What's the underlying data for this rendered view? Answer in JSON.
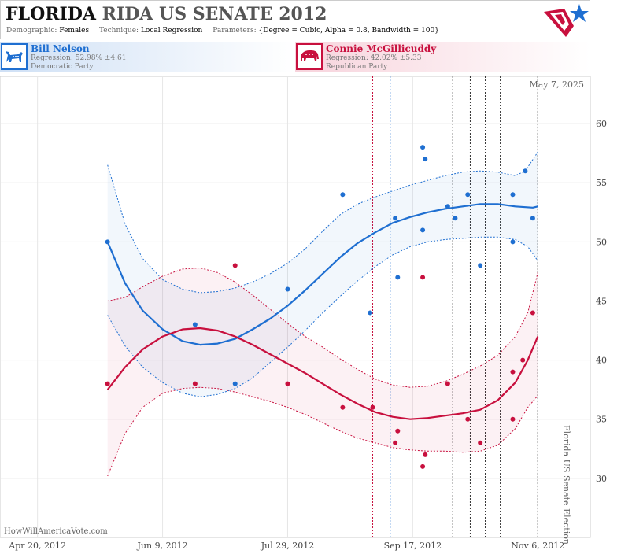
{
  "header": {
    "title_state": "FLORIDA",
    "title_rest": "RIDA US SENATE 2012",
    "params": [
      {
        "key": "Demographic:",
        "value": "Females"
      },
      {
        "key": "Technique:",
        "value": "Local Regression"
      },
      {
        "key": "Parameters:",
        "value": "{Degree = Cubic, Alpha = 0.8, Bandwidth = 100}"
      }
    ]
  },
  "candidates": {
    "dem": {
      "name": "Bill Nelson",
      "regression": "Regression: 52.98% ±4.61",
      "party": "Democratic Party",
      "color": "#1f6fd1"
    },
    "rep": {
      "name": "Connie McGillicuddy",
      "regression": "Regression: 42.02% ±5.33",
      "party": "Republican Party",
      "color": "#c8103e"
    }
  },
  "chart_data": {
    "type": "scatter",
    "title": "FLORIDA RIDA US SENATE 2012",
    "date_label": "May 7, 2025",
    "watermark": "HowWillAmericaVote.com",
    "vertical_label": "Florida US Senate Election",
    "x_ticks": [
      "Apr 20, 2012",
      "Jun 9, 2012",
      "Jul 29, 2012",
      "Sep 17, 2012",
      "Nov 6, 2012"
    ],
    "xlim": [
      "2012-04-05",
      "2012-11-27"
    ],
    "ylim": [
      25,
      64
    ],
    "y_ticks": [
      30,
      35,
      40,
      45,
      50,
      55,
      60
    ],
    "event_lines": [
      {
        "date": "2012-09-01",
        "color": "#c8103e"
      },
      {
        "date": "2012-09-08",
        "color": "#1f6fd1"
      },
      {
        "date": "2012-10-03",
        "color": "#333333"
      },
      {
        "date": "2012-10-10",
        "color": "#333333"
      },
      {
        "date": "2012-10-16",
        "color": "#333333"
      },
      {
        "date": "2012-10-22",
        "color": "#333333"
      },
      {
        "date": "2012-11-06",
        "color": "#333333"
      }
    ],
    "series": [
      {
        "name": "Bill Nelson",
        "color": "#1f6fd1",
        "points": [
          [
            "2012-05-18",
            50
          ],
          [
            "2012-06-22",
            43
          ],
          [
            "2012-07-08",
            38
          ],
          [
            "2012-07-29",
            46
          ],
          [
            "2012-08-20",
            54
          ],
          [
            "2012-08-31",
            44
          ],
          [
            "2012-09-10",
            52
          ],
          [
            "2012-09-11",
            47
          ],
          [
            "2012-09-21",
            58
          ],
          [
            "2012-09-22",
            57
          ],
          [
            "2012-09-21",
            51
          ],
          [
            "2012-10-01",
            53
          ],
          [
            "2012-10-04",
            52
          ],
          [
            "2012-10-09",
            54
          ],
          [
            "2012-10-14",
            48
          ],
          [
            "2012-10-27",
            54
          ],
          [
            "2012-10-27",
            50
          ],
          [
            "2012-11-01",
            56
          ],
          [
            "2012-11-04",
            52
          ]
        ],
        "trend": [
          [
            "2012-05-18",
            50.0
          ],
          [
            "2012-05-25",
            46.5
          ],
          [
            "2012-06-01",
            44.2
          ],
          [
            "2012-06-09",
            42.6
          ],
          [
            "2012-06-17",
            41.6
          ],
          [
            "2012-06-24",
            41.3
          ],
          [
            "2012-07-01",
            41.4
          ],
          [
            "2012-07-08",
            41.8
          ],
          [
            "2012-07-15",
            42.6
          ],
          [
            "2012-07-22",
            43.5
          ],
          [
            "2012-07-29",
            44.6
          ],
          [
            "2012-08-05",
            45.9
          ],
          [
            "2012-08-12",
            47.3
          ],
          [
            "2012-08-19",
            48.7
          ],
          [
            "2012-08-26",
            49.9
          ],
          [
            "2012-09-02",
            50.8
          ],
          [
            "2012-09-09",
            51.6
          ],
          [
            "2012-09-16",
            52.1
          ],
          [
            "2012-09-23",
            52.5
          ],
          [
            "2012-09-30",
            52.8
          ],
          [
            "2012-10-07",
            53.0
          ],
          [
            "2012-10-14",
            53.2
          ],
          [
            "2012-10-21",
            53.2
          ],
          [
            "2012-10-28",
            53.0
          ],
          [
            "2012-11-04",
            52.9
          ],
          [
            "2012-11-06",
            53.0
          ]
        ],
        "upper": [
          [
            "2012-05-18",
            56.5
          ],
          [
            "2012-05-25",
            51.5
          ],
          [
            "2012-06-01",
            48.6
          ],
          [
            "2012-06-09",
            46.8
          ],
          [
            "2012-06-17",
            46.0
          ],
          [
            "2012-06-24",
            45.7
          ],
          [
            "2012-07-01",
            45.8
          ],
          [
            "2012-07-08",
            46.1
          ],
          [
            "2012-07-15",
            46.6
          ],
          [
            "2012-07-22",
            47.3
          ],
          [
            "2012-07-29",
            48.2
          ],
          [
            "2012-08-05",
            49.4
          ],
          [
            "2012-08-12",
            50.9
          ],
          [
            "2012-08-19",
            52.3
          ],
          [
            "2012-08-26",
            53.2
          ],
          [
            "2012-09-02",
            53.8
          ],
          [
            "2012-09-09",
            54.3
          ],
          [
            "2012-09-16",
            54.8
          ],
          [
            "2012-09-23",
            55.2
          ],
          [
            "2012-09-30",
            55.6
          ],
          [
            "2012-10-07",
            55.9
          ],
          [
            "2012-10-14",
            56.0
          ],
          [
            "2012-10-21",
            55.9
          ],
          [
            "2012-10-28",
            55.6
          ],
          [
            "2012-11-01",
            56.0
          ],
          [
            "2012-11-06",
            57.6
          ]
        ],
        "lower": [
          [
            "2012-05-18",
            43.8
          ],
          [
            "2012-05-25",
            41.2
          ],
          [
            "2012-06-01",
            39.4
          ],
          [
            "2012-06-09",
            38.1
          ],
          [
            "2012-06-17",
            37.2
          ],
          [
            "2012-06-24",
            36.9
          ],
          [
            "2012-07-01",
            37.1
          ],
          [
            "2012-07-08",
            37.6
          ],
          [
            "2012-07-15",
            38.5
          ],
          [
            "2012-07-22",
            39.8
          ],
          [
            "2012-07-29",
            41.1
          ],
          [
            "2012-08-05",
            42.5
          ],
          [
            "2012-08-12",
            44.0
          ],
          [
            "2012-08-19",
            45.4
          ],
          [
            "2012-08-26",
            46.7
          ],
          [
            "2012-09-02",
            47.9
          ],
          [
            "2012-09-09",
            48.9
          ],
          [
            "2012-09-16",
            49.6
          ],
          [
            "2012-09-23",
            50.0
          ],
          [
            "2012-09-30",
            50.2
          ],
          [
            "2012-10-07",
            50.3
          ],
          [
            "2012-10-14",
            50.4
          ],
          [
            "2012-10-21",
            50.4
          ],
          [
            "2012-10-28",
            50.2
          ],
          [
            "2012-11-02",
            49.6
          ],
          [
            "2012-11-06",
            48.4
          ]
        ]
      },
      {
        "name": "Connie McGillicuddy",
        "color": "#c8103e",
        "points": [
          [
            "2012-05-18",
            38
          ],
          [
            "2012-06-22",
            38
          ],
          [
            "2012-07-08",
            48
          ],
          [
            "2012-07-29",
            38
          ],
          [
            "2012-08-20",
            36
          ],
          [
            "2012-09-01",
            36
          ],
          [
            "2012-09-10",
            33
          ],
          [
            "2012-09-11",
            34
          ],
          [
            "2012-09-21",
            47
          ],
          [
            "2012-09-22",
            32
          ],
          [
            "2012-09-21",
            31
          ],
          [
            "2012-10-01",
            38
          ],
          [
            "2012-10-09",
            35
          ],
          [
            "2012-10-14",
            33
          ],
          [
            "2012-10-27",
            35
          ],
          [
            "2012-10-27",
            39
          ],
          [
            "2012-10-31",
            40
          ],
          [
            "2012-11-04",
            44
          ]
        ],
        "trend": [
          [
            "2012-05-18",
            37.5
          ],
          [
            "2012-05-25",
            39.4
          ],
          [
            "2012-06-01",
            40.9
          ],
          [
            "2012-06-09",
            42.0
          ],
          [
            "2012-06-17",
            42.6
          ],
          [
            "2012-06-24",
            42.7
          ],
          [
            "2012-07-01",
            42.5
          ],
          [
            "2012-07-08",
            42.0
          ],
          [
            "2012-07-15",
            41.3
          ],
          [
            "2012-07-22",
            40.5
          ],
          [
            "2012-07-29",
            39.7
          ],
          [
            "2012-08-05",
            38.9
          ],
          [
            "2012-08-12",
            38.0
          ],
          [
            "2012-08-19",
            37.1
          ],
          [
            "2012-08-26",
            36.3
          ],
          [
            "2012-09-02",
            35.6
          ],
          [
            "2012-09-09",
            35.2
          ],
          [
            "2012-09-16",
            35.0
          ],
          [
            "2012-09-23",
            35.1
          ],
          [
            "2012-09-30",
            35.3
          ],
          [
            "2012-10-07",
            35.5
          ],
          [
            "2012-10-14",
            35.8
          ],
          [
            "2012-10-21",
            36.6
          ],
          [
            "2012-10-28",
            38.1
          ],
          [
            "2012-11-02",
            40.0
          ],
          [
            "2012-11-06",
            42.0
          ]
        ],
        "upper": [
          [
            "2012-05-18",
            45.0
          ],
          [
            "2012-05-25",
            45.3
          ],
          [
            "2012-06-01",
            46.2
          ],
          [
            "2012-06-09",
            47.1
          ],
          [
            "2012-06-17",
            47.7
          ],
          [
            "2012-06-24",
            47.8
          ],
          [
            "2012-07-01",
            47.4
          ],
          [
            "2012-07-08",
            46.6
          ],
          [
            "2012-07-15",
            45.5
          ],
          [
            "2012-07-22",
            44.3
          ],
          [
            "2012-07-29",
            43.1
          ],
          [
            "2012-08-05",
            42.0
          ],
          [
            "2012-08-12",
            41.1
          ],
          [
            "2012-08-19",
            40.1
          ],
          [
            "2012-08-26",
            39.2
          ],
          [
            "2012-09-02",
            38.4
          ],
          [
            "2012-09-09",
            37.9
          ],
          [
            "2012-09-16",
            37.7
          ],
          [
            "2012-09-23",
            37.8
          ],
          [
            "2012-09-30",
            38.2
          ],
          [
            "2012-10-07",
            38.8
          ],
          [
            "2012-10-14",
            39.5
          ],
          [
            "2012-10-21",
            40.4
          ],
          [
            "2012-10-28",
            42.0
          ],
          [
            "2012-11-02",
            44.0
          ],
          [
            "2012-11-06",
            47.4
          ]
        ],
        "lower": [
          [
            "2012-05-18",
            30.2
          ],
          [
            "2012-05-25",
            33.8
          ],
          [
            "2012-06-01",
            36.0
          ],
          [
            "2012-06-09",
            37.2
          ],
          [
            "2012-06-17",
            37.6
          ],
          [
            "2012-06-24",
            37.7
          ],
          [
            "2012-07-01",
            37.6
          ],
          [
            "2012-07-08",
            37.3
          ],
          [
            "2012-07-15",
            36.9
          ],
          [
            "2012-07-22",
            36.5
          ],
          [
            "2012-07-29",
            36.0
          ],
          [
            "2012-08-05",
            35.4
          ],
          [
            "2012-08-12",
            34.7
          ],
          [
            "2012-08-19",
            34.0
          ],
          [
            "2012-08-26",
            33.4
          ],
          [
            "2012-09-02",
            33.0
          ],
          [
            "2012-09-09",
            32.6
          ],
          [
            "2012-09-16",
            32.4
          ],
          [
            "2012-09-23",
            32.3
          ],
          [
            "2012-09-30",
            32.3
          ],
          [
            "2012-10-07",
            32.2
          ],
          [
            "2012-10-14",
            32.3
          ],
          [
            "2012-10-21",
            32.8
          ],
          [
            "2012-10-28",
            34.2
          ],
          [
            "2012-11-02",
            36.0
          ],
          [
            "2012-11-06",
            37.0
          ]
        ]
      }
    ]
  }
}
